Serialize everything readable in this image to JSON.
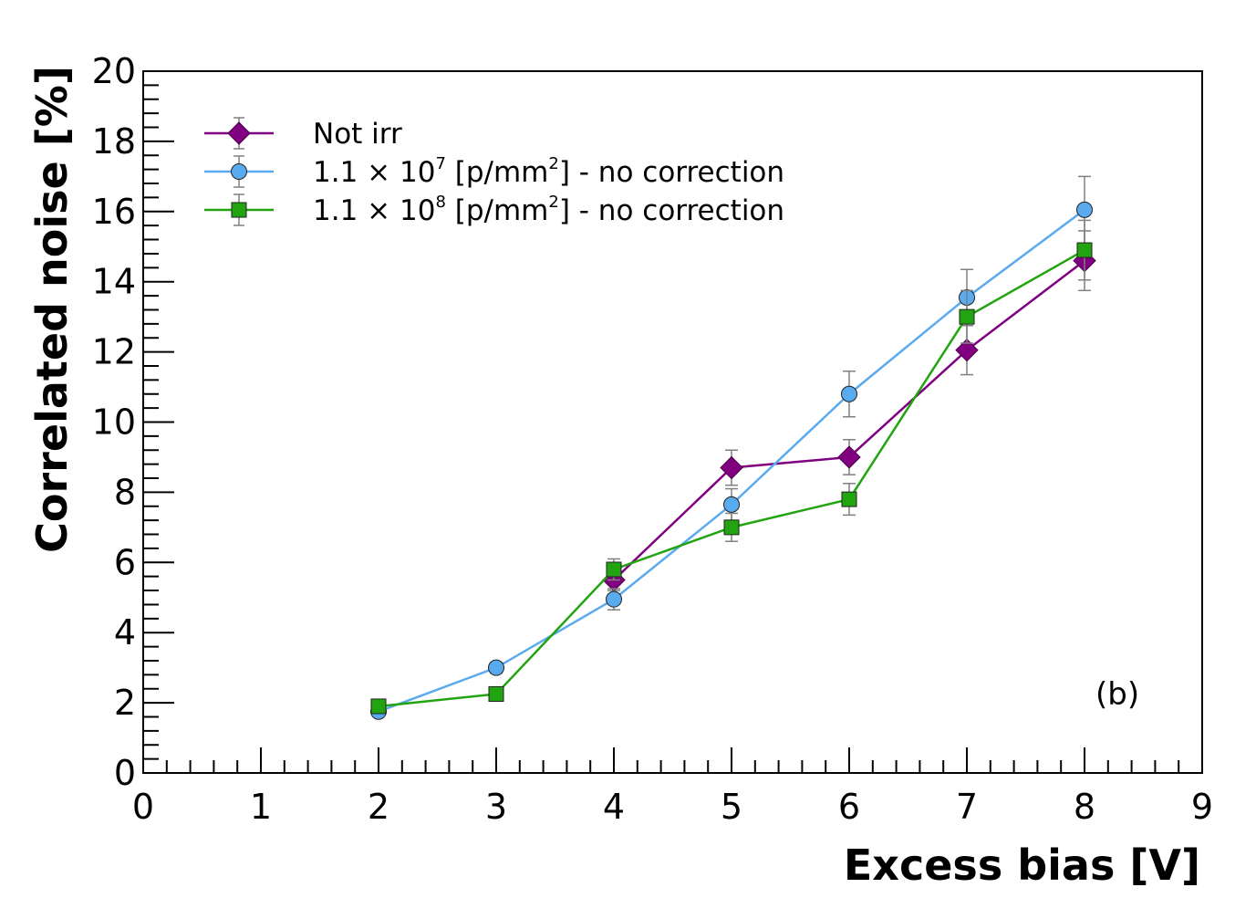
{
  "chart_data": {
    "type": "line",
    "xlabel": "Excess bias [V]",
    "ylabel": "Correlated noise [%]",
    "xlim": [
      0,
      9
    ],
    "ylim": [
      0,
      20
    ],
    "x_ticks": [
      "0",
      "1",
      "2",
      "3",
      "4",
      "5",
      "6",
      "7",
      "8",
      "9"
    ],
    "y_ticks": [
      "0",
      "2",
      "4",
      "6",
      "8",
      "10",
      "12",
      "14",
      "16",
      "18",
      "20"
    ],
    "legend_position": "top-left",
    "annotation": "(b)",
    "series": [
      {
        "name": "Not irr",
        "label_base": "Not irr",
        "color": "#800080",
        "marker": "diamond",
        "points": [
          {
            "x": 4,
            "y": 5.5,
            "err": 0.3
          },
          {
            "x": 5,
            "y": 8.7,
            "err": 0.5
          },
          {
            "x": 6,
            "y": 9.0,
            "err": 0.5
          },
          {
            "x": 7,
            "y": 12.05,
            "err": 0.7
          },
          {
            "x": 8,
            "y": 14.6,
            "err": 0.85
          }
        ]
      },
      {
        "name": "1.1 × 10^7 [p/mm^2] - no correction",
        "label_base": "1.1 × 10",
        "label_exp": "7",
        "label_mid": " [p/mm",
        "label_exp2": "2",
        "label_end": "] - no correction",
        "color": "#5aaaf0",
        "marker": "circle",
        "points": [
          {
            "x": 2,
            "y": 1.75,
            "err": 0.1
          },
          {
            "x": 3,
            "y": 3.0,
            "err": 0.15
          },
          {
            "x": 4,
            "y": 4.95,
            "err": 0.3
          },
          {
            "x": 5,
            "y": 7.65,
            "err": 0.45
          },
          {
            "x": 6,
            "y": 10.8,
            "err": 0.65
          },
          {
            "x": 7,
            "y": 13.55,
            "err": 0.8
          },
          {
            "x": 8,
            "y": 16.05,
            "err": 0.95
          }
        ]
      },
      {
        "name": "1.1 × 10^8 [p/mm^2] - no correction",
        "label_base": "1.1 × 10",
        "label_exp": "8",
        "label_mid": " [p/mm",
        "label_exp2": "2",
        "label_end": "] - no correction",
        "color": "#22a411",
        "marker": "square",
        "points": [
          {
            "x": 2,
            "y": 1.9,
            "err": 0.1
          },
          {
            "x": 3,
            "y": 2.25,
            "err": 0.1
          },
          {
            "x": 4,
            "y": 5.8,
            "err": 0.3
          },
          {
            "x": 5,
            "y": 7.0,
            "err": 0.4
          },
          {
            "x": 6,
            "y": 7.8,
            "err": 0.45
          },
          {
            "x": 7,
            "y": 13.0,
            "err": 0.75
          },
          {
            "x": 8,
            "y": 14.9,
            "err": 0.85
          }
        ]
      }
    ]
  }
}
